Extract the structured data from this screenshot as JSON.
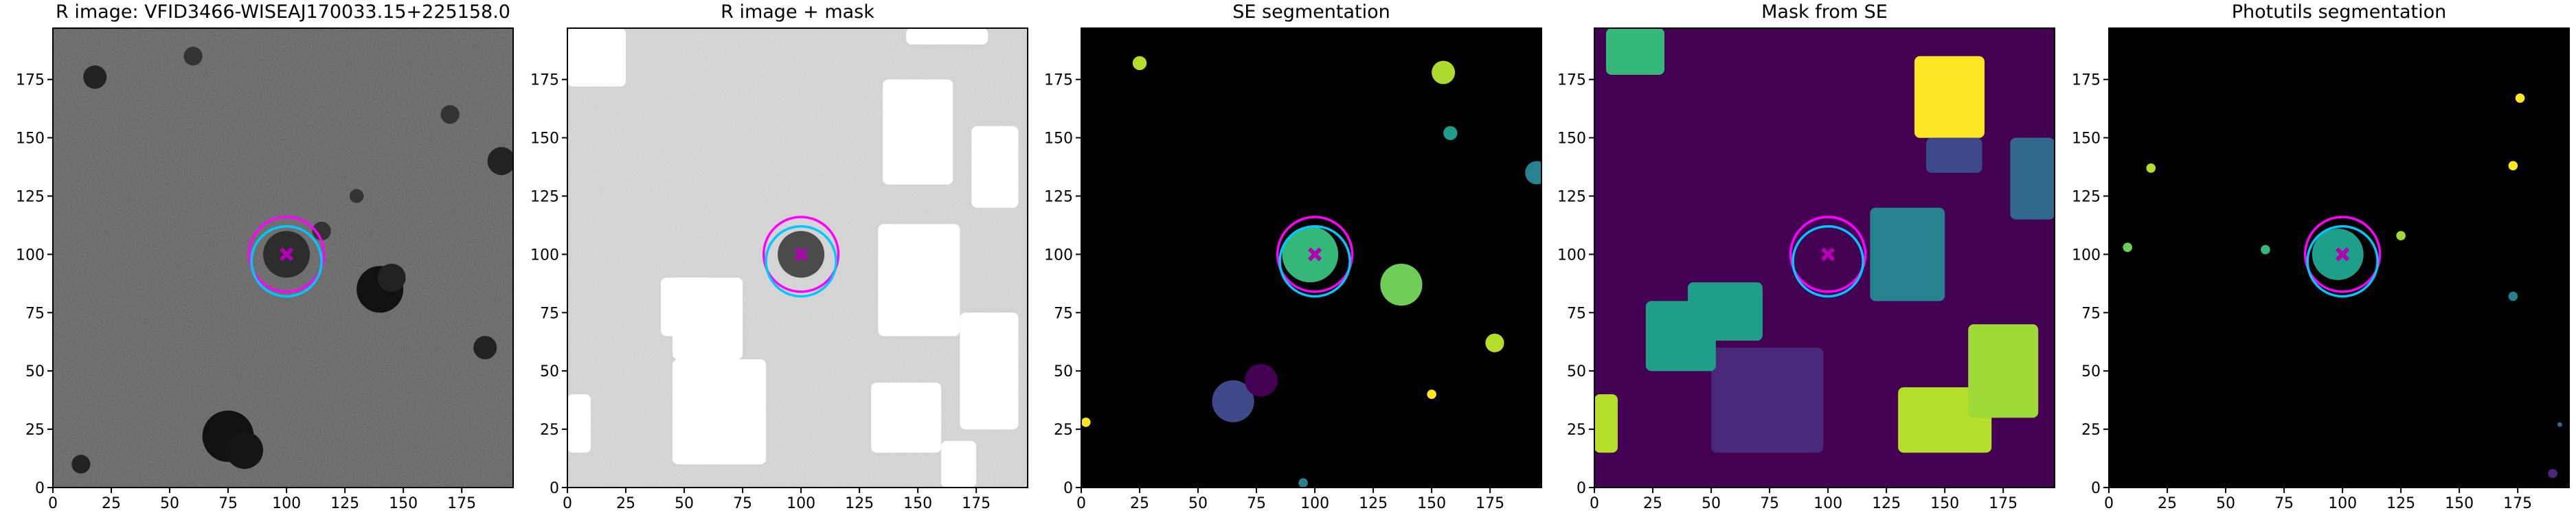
{
  "chart_data": [
    {
      "type": "image",
      "title": "R image: VFID3466-WISEAJ170033.15+225158.0",
      "background": "#5a5a5a",
      "xlim": [
        0,
        197
      ],
      "ylim": [
        0,
        197
      ],
      "xticks": [
        0,
        25,
        50,
        75,
        100,
        125,
        150,
        175
      ],
      "yticks": [
        0,
        25,
        50,
        75,
        100,
        125,
        150,
        175
      ],
      "marker": {
        "x": 100,
        "y": 100,
        "color": "#b000b0"
      },
      "circles": [
        {
          "x": 100,
          "y": 100,
          "r": 16,
          "color": "#ff00ff"
        },
        {
          "x": 100,
          "y": 97,
          "r": 15,
          "color": "#00c8ff"
        }
      ]
    },
    {
      "type": "image",
      "title": "R image + mask",
      "background": "#d8d8d8",
      "xlim": [
        0,
        197
      ],
      "ylim": [
        0,
        197
      ],
      "xticks": [
        0,
        25,
        50,
        75,
        100,
        125,
        150,
        175
      ],
      "yticks": [
        0,
        25,
        50,
        75,
        100,
        125,
        150,
        175
      ],
      "marker": {
        "x": 100,
        "y": 100,
        "color": "#b000b0"
      },
      "circles": [
        {
          "x": 100,
          "y": 100,
          "r": 16,
          "color": "#ff00ff"
        },
        {
          "x": 100,
          "y": 97,
          "r": 15,
          "color": "#00c8ff"
        }
      ]
    },
    {
      "type": "image",
      "title": "SE segmentation",
      "background": "#000000",
      "xlim": [
        0,
        197
      ],
      "ylim": [
        0,
        197
      ],
      "xticks": [
        0,
        25,
        50,
        75,
        100,
        125,
        150,
        175
      ],
      "yticks": [
        0,
        25,
        50,
        75,
        100,
        125,
        150,
        175
      ],
      "marker": {
        "x": 100,
        "y": 100,
        "color": "#b000b0"
      },
      "circles": [
        {
          "x": 100,
          "y": 100,
          "r": 16,
          "color": "#ff00ff"
        },
        {
          "x": 100,
          "y": 97,
          "r": 15,
          "color": "#00c8ff"
        }
      ]
    },
    {
      "type": "image",
      "title": "Mask from SE",
      "background": "#440154",
      "xlim": [
        0,
        197
      ],
      "ylim": [
        0,
        197
      ],
      "xticks": [
        0,
        25,
        50,
        75,
        100,
        125,
        150,
        175
      ],
      "yticks": [
        0,
        25,
        50,
        75,
        100,
        125,
        150,
        175
      ],
      "marker": {
        "x": 100,
        "y": 100,
        "color": "#b000b0"
      },
      "circles": [
        {
          "x": 100,
          "y": 100,
          "r": 16,
          "color": "#ff00ff"
        },
        {
          "x": 100,
          "y": 97,
          "r": 15,
          "color": "#00c8ff"
        }
      ]
    },
    {
      "type": "image",
      "title": "Photutils segmentation",
      "background": "#000000",
      "xlim": [
        0,
        197
      ],
      "ylim": [
        0,
        197
      ],
      "xticks": [
        0,
        25,
        50,
        75,
        100,
        125,
        150,
        175
      ],
      "yticks": [
        0,
        25,
        50,
        75,
        100,
        125,
        150,
        175
      ],
      "marker": {
        "x": 100,
        "y": 100,
        "color": "#b000b0"
      },
      "circles": [
        {
          "x": 100,
          "y": 100,
          "r": 16,
          "color": "#ff00ff"
        },
        {
          "x": 100,
          "y": 97,
          "r": 15,
          "color": "#00c8ff"
        }
      ]
    }
  ]
}
